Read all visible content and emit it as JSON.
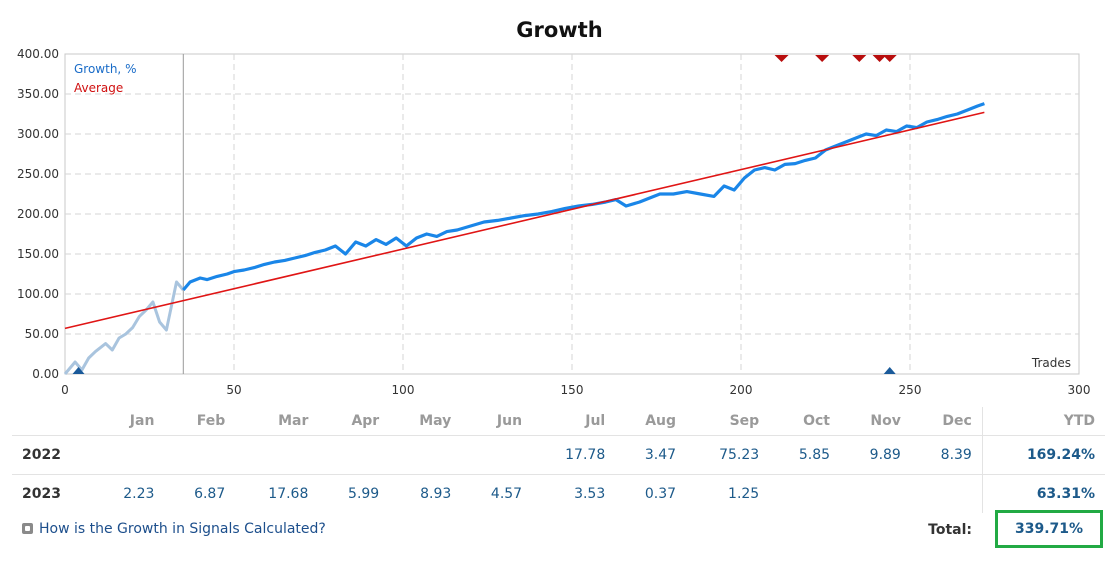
{
  "chart_data": {
    "type": "line",
    "title": "Growth",
    "xlabel": "Trades",
    "xlim": [
      0,
      300
    ],
    "ylim": [
      0,
      400
    ],
    "x_ticks": [
      0,
      50,
      100,
      150,
      200,
      250,
      300
    ],
    "y_ticks": [
      "0.00",
      "50.00",
      "100.00",
      "150.00",
      "200.00",
      "250.00",
      "300.00",
      "350.00",
      "400.00"
    ],
    "grid": true,
    "legend_position": "top-left",
    "colors": {
      "growth": "#1a86e8",
      "growth_pre": "#a9c4de",
      "average": "#e01515",
      "marker_red": "#b80d0d",
      "marker_blue": "#1a5a9a"
    },
    "series": [
      {
        "name": "Growth, %",
        "x": [
          0,
          3,
          5,
          7,
          9,
          12,
          14,
          16,
          18,
          20,
          22,
          24,
          26,
          28,
          30,
          33,
          35,
          37,
          40,
          42,
          45,
          48,
          50,
          53,
          56,
          59,
          62,
          65,
          68,
          71,
          74,
          77,
          80,
          83,
          86,
          89,
          92,
          95,
          98,
          101,
          104,
          107,
          110,
          113,
          116,
          120,
          124,
          128,
          132,
          136,
          140,
          144,
          148,
          152,
          156,
          160,
          163,
          166,
          170,
          173,
          176,
          180,
          184,
          188,
          192,
          195,
          198,
          201,
          204,
          207,
          210,
          213,
          216,
          219,
          222,
          225,
          228,
          231,
          234,
          237,
          240,
          243,
          246,
          249,
          252,
          255,
          258,
          261,
          264,
          267,
          270,
          272
        ],
        "y": [
          0,
          15,
          5,
          20,
          28,
          38,
          30,
          45,
          50,
          58,
          72,
          80,
          90,
          65,
          55,
          115,
          105,
          115,
          120,
          118,
          122,
          125,
          128,
          130,
          133,
          137,
          140,
          142,
          145,
          148,
          152,
          155,
          160,
          150,
          165,
          160,
          168,
          162,
          170,
          160,
          170,
          175,
          172,
          178,
          180,
          185,
          190,
          192,
          195,
          198,
          200,
          203,
          207,
          210,
          212,
          215,
          218,
          210,
          215,
          220,
          225,
          225,
          228,
          225,
          222,
          235,
          230,
          245,
          255,
          258,
          255,
          262,
          263,
          267,
          270,
          280,
          285,
          290,
          295,
          300,
          298,
          305,
          303,
          310,
          308,
          315,
          318,
          322,
          325,
          330,
          335,
          338
        ]
      },
      {
        "name": "Average",
        "x": [
          0,
          272
        ],
        "y": [
          57,
          327
        ]
      }
    ],
    "markers": {
      "top_red": [
        212,
        224,
        235,
        241,
        244
      ],
      "bottom_blue": [
        4,
        244
      ]
    },
    "cursor_x": 35
  },
  "table": {
    "headers": [
      "",
      "Jan",
      "Feb",
      "Mar",
      "Apr",
      "May",
      "Jun",
      "Jul",
      "Aug",
      "Sep",
      "Oct",
      "Nov",
      "Dec",
      "YTD"
    ],
    "rows": [
      {
        "year": "2022",
        "values": [
          "",
          "",
          "",
          "",
          "",
          "",
          "17.78",
          "3.47",
          "75.23",
          "5.85",
          "9.89",
          "8.39"
        ],
        "ytd": "169.24%"
      },
      {
        "year": "2023",
        "values": [
          "2.23",
          "6.87",
          "17.68",
          "5.99",
          "8.93",
          "4.57",
          "3.53",
          "0.37",
          "1.25",
          "",
          "",
          ""
        ],
        "ytd": "63.31%"
      }
    ]
  },
  "footer": {
    "help_link": "How is the Growth in Signals Calculated?",
    "total_label": "Total:",
    "total_value": "339.71%"
  }
}
